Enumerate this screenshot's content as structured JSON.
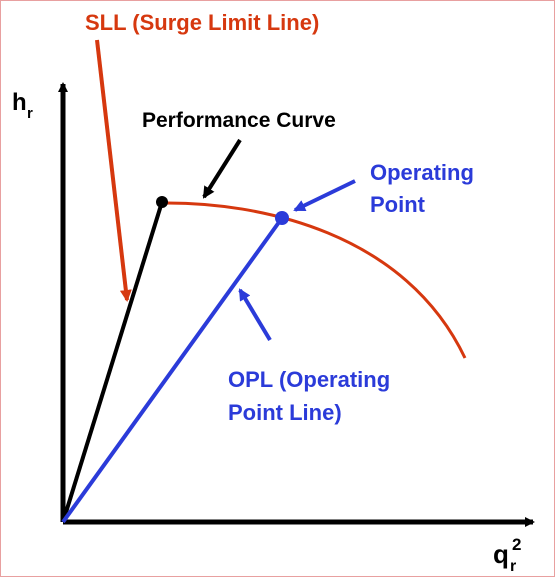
{
  "title": "SLL (Surge Limit Line)",
  "labels": {
    "performance_curve": "Performance Curve",
    "operating_point": [
      "Operating",
      "Point"
    ],
    "opl": [
      "OPL (Operating",
      "Point Line)"
    ]
  },
  "axes": {
    "y": {
      "base": "h",
      "sub": "r"
    },
    "x": {
      "base": "q",
      "sub": "r",
      "sup": "2"
    }
  }
}
